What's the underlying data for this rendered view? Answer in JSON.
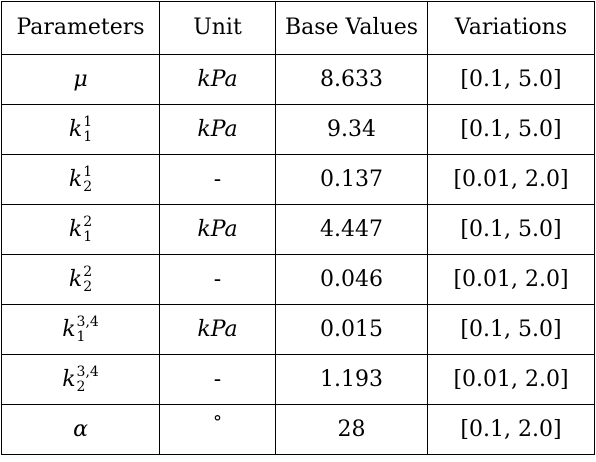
{
  "table": {
    "headers": [
      "Parameters",
      "Unit",
      "Base Values",
      "Variations"
    ],
    "rows": [
      {
        "param": "μ",
        "param_sup": "",
        "param_sub": "",
        "unit": "kPa",
        "base": "8.633",
        "variation": "[0.1, 5.0]"
      },
      {
        "param": "k",
        "param_sup": "1",
        "param_sub": "1",
        "unit": "kPa",
        "base": "9.34",
        "variation": "[0.1, 5.0]"
      },
      {
        "param": "k",
        "param_sup": "1",
        "param_sub": "2",
        "unit": "-",
        "base": "0.137",
        "variation": "[0.01, 2.0]"
      },
      {
        "param": "k",
        "param_sup": "2",
        "param_sub": "1",
        "unit": "kPa",
        "base": "4.447",
        "variation": "[0.1, 5.0]"
      },
      {
        "param": "k",
        "param_sup": "2",
        "param_sub": "2",
        "unit": "-",
        "base": "0.046",
        "variation": "[0.01, 2.0]"
      },
      {
        "param": "k",
        "param_sup": "3,4",
        "param_sub": "1",
        "unit": "kPa",
        "base": "0.015",
        "variation": "[0.1, 5.0]"
      },
      {
        "param": "k",
        "param_sup": "3,4",
        "param_sub": "2",
        "unit": "-",
        "base": "1.193",
        "variation": "[0.01, 2.0]"
      },
      {
        "param": "α",
        "param_sup": "",
        "param_sub": "",
        "unit": "°",
        "base": "28",
        "variation": "[0.1, 2.0]"
      }
    ]
  }
}
